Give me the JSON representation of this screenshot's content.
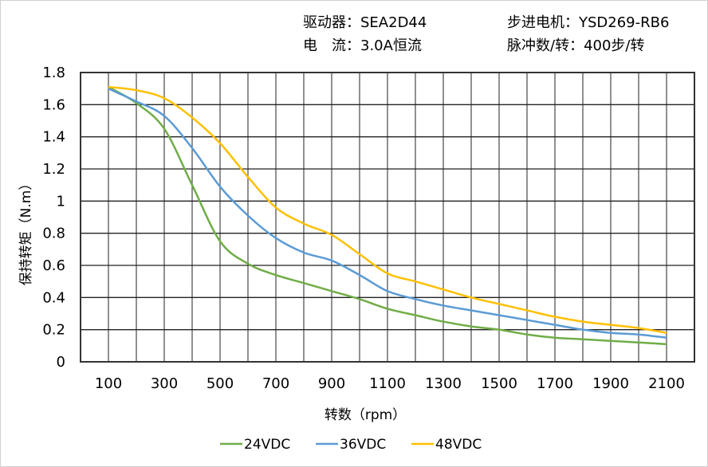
{
  "header": {
    "driver_label": "驱动器：SEA2D44",
    "motor_label": "步进电机：YSD269-RB6",
    "current_label": "电　流：3.0A恒流",
    "pulse_label": "脉冲数/转：400步/转"
  },
  "chart_data": {
    "type": "line",
    "title": "",
    "xlabel": "转数（rpm）",
    "ylabel": "保持转矩（N.m）",
    "xlim": [
      0,
      2200
    ],
    "ylim": [
      0,
      1.8
    ],
    "x_ticks": [
      "100",
      "300",
      "500",
      "700",
      "900",
      "1100",
      "1300",
      "1500",
      "1700",
      "1900",
      "2100"
    ],
    "y_ticks": [
      "0",
      "0.2",
      "0.4",
      "0.6",
      "0.8",
      "1",
      "1.2",
      "1.4",
      "1.6",
      "1.8"
    ],
    "grid": true,
    "legend": "bottom",
    "x": [
      100,
      200,
      300,
      400,
      500,
      600,
      700,
      800,
      900,
      1000,
      1100,
      1200,
      1300,
      1400,
      1500,
      1600,
      1700,
      1800,
      1900,
      2000,
      2100
    ],
    "series": [
      {
        "name": "24VDC",
        "color": "#70AD47",
        "values": [
          1.71,
          1.61,
          1.45,
          1.1,
          0.75,
          0.61,
          0.54,
          0.49,
          0.44,
          0.39,
          0.33,
          0.29,
          0.25,
          0.22,
          0.2,
          0.17,
          0.15,
          0.14,
          0.13,
          0.12,
          0.11
        ]
      },
      {
        "name": "36VDC",
        "color": "#5B9BD5",
        "values": [
          1.7,
          1.62,
          1.53,
          1.33,
          1.09,
          0.91,
          0.77,
          0.68,
          0.63,
          0.54,
          0.44,
          0.39,
          0.35,
          0.32,
          0.29,
          0.26,
          0.23,
          0.2,
          0.18,
          0.17,
          0.15
        ]
      },
      {
        "name": "48VDC",
        "color": "#FFC000",
        "values": [
          1.71,
          1.69,
          1.64,
          1.52,
          1.36,
          1.15,
          0.96,
          0.86,
          0.79,
          0.67,
          0.55,
          0.5,
          0.45,
          0.4,
          0.36,
          0.32,
          0.28,
          0.25,
          0.23,
          0.21,
          0.18
        ]
      }
    ]
  }
}
